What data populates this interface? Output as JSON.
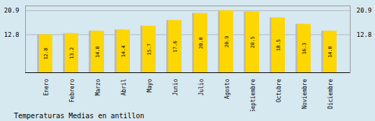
{
  "chart_data": {
    "type": "bar",
    "title": "Temperaturas Medias en antillon",
    "categories": [
      "Enero",
      "Febrero",
      "Marzo",
      "Abril",
      "Mayo",
      "Junio",
      "Julio",
      "Agosto",
      "Septiembre",
      "Octubre",
      "Noviembre",
      "Diciembre"
    ],
    "values": [
      12.8,
      13.2,
      14.0,
      14.4,
      15.7,
      17.6,
      20.0,
      20.9,
      20.5,
      18.5,
      16.3,
      14.0
    ],
    "value_labels": [
      "12.8",
      "13.2",
      "14.0",
      "14.4",
      "15.7",
      "17.6",
      "20.0",
      "20.9",
      "20.5",
      "18.5",
      "16.3",
      "14.0"
    ],
    "color": "#FFD700",
    "ylim": [
      0,
      22.5
    ],
    "yticks": [
      12.8,
      20.9
    ],
    "grid": true,
    "data_labels": true
  }
}
